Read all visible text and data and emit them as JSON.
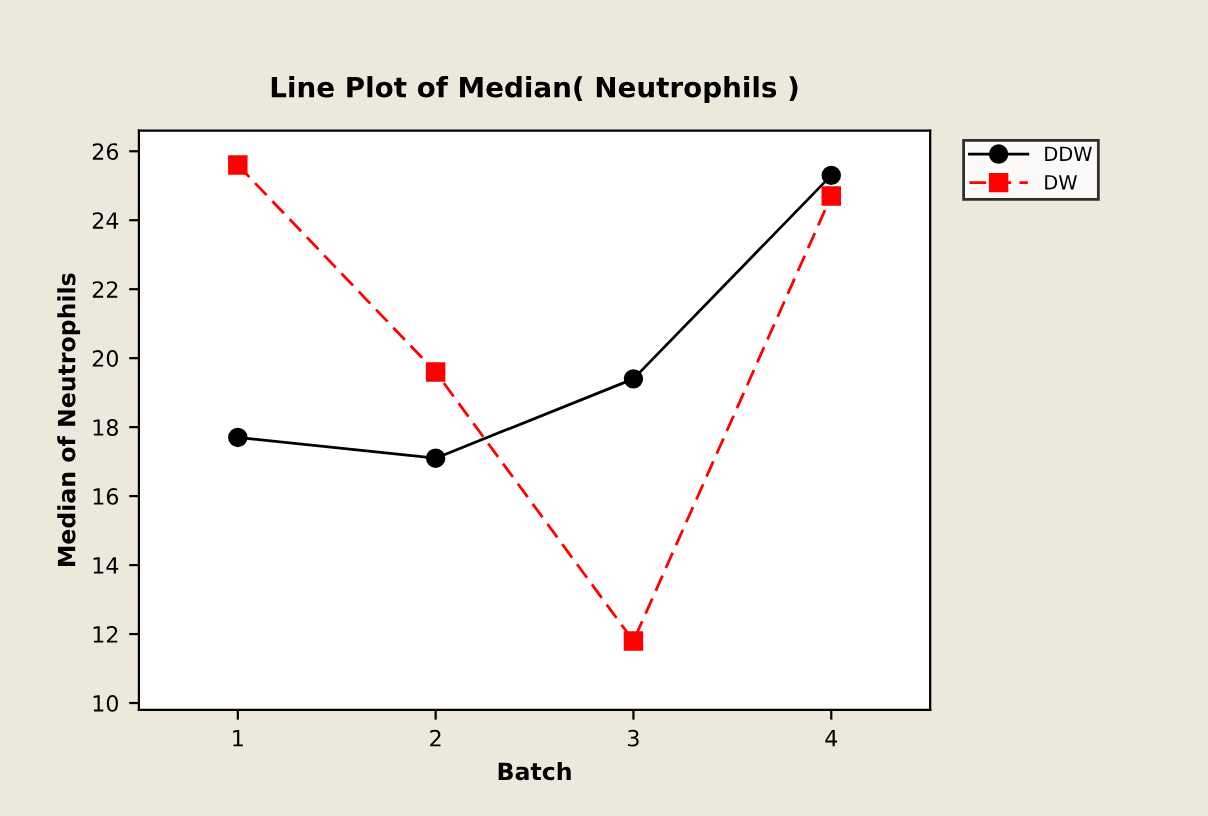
{
  "chart_data": {
    "type": "line",
    "title": "Line Plot of Median( Neutrophils )",
    "xlabel": "Batch",
    "ylabel": "Median of Neutrophils",
    "categories": [
      "1",
      "2",
      "3",
      "4"
    ],
    "series": [
      {
        "name": "DDW",
        "color": "#000000",
        "values": [
          17.7,
          17.1,
          19.4,
          25.3
        ],
        "marker": "circle",
        "line_style": "solid"
      },
      {
        "name": "DW",
        "color": "#ff0000",
        "values": [
          25.6,
          19.6,
          11.8,
          24.7
        ],
        "marker": "square",
        "line_style": "dashed"
      }
    ],
    "ylim": [
      9.8,
      26.6
    ],
    "yticks": [
      10,
      12,
      14,
      16,
      18,
      20,
      22,
      24,
      26
    ],
    "grid": false,
    "legend": "top right"
  }
}
